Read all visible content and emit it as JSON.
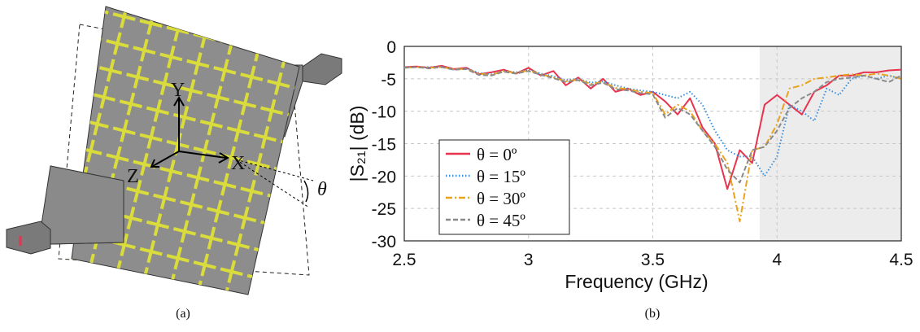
{
  "diagram": {
    "labels": {
      "y": "Y",
      "x": "X",
      "z": "Z",
      "angle": "θ"
    }
  },
  "captions": [
    "(a)",
    "(b)"
  ],
  "chart_data": {
    "type": "line",
    "xlabel": "Frequency (GHz)",
    "ylabel": "|S₂₁| (dB)",
    "x": [
      2.5,
      2.55,
      2.6,
      2.65,
      2.7,
      2.75,
      2.8,
      2.85,
      2.9,
      2.95,
      3.0,
      3.05,
      3.1,
      3.15,
      3.2,
      3.25,
      3.3,
      3.35,
      3.4,
      3.45,
      3.5,
      3.55,
      3.6,
      3.65,
      3.7,
      3.75,
      3.8,
      3.85,
      3.9,
      3.95,
      4.0,
      4.05,
      4.1,
      4.15,
      4.2,
      4.25,
      4.3,
      4.35,
      4.4,
      4.45,
      4.5
    ],
    "series": [
      {
        "name": "θ = 0º",
        "color": "#e8334f",
        "dash": "solid",
        "values": [
          -3.2,
          -3.1,
          -3.3,
          -3.0,
          -3.5,
          -3.3,
          -4.3,
          -4.0,
          -3.6,
          -4.2,
          -3.3,
          -4.5,
          -3.8,
          -6.0,
          -4.8,
          -6.5,
          -5.0,
          -7.0,
          -6.5,
          -7.5,
          -7.0,
          -8.5,
          -10.5,
          -8.0,
          -12.5,
          -15.0,
          -22.0,
          -16.0,
          -18.0,
          -9.0,
          -7.5,
          -9.0,
          -10.5,
          -7.0,
          -6.0,
          -4.5,
          -4.5,
          -4.0,
          -4.0,
          -3.7,
          -3.6
        ]
      },
      {
        "name": "θ = 15º",
        "color": "#3a8fdc",
        "dash": "dotted",
        "values": [
          -3.2,
          -3.2,
          -3.2,
          -3.1,
          -3.6,
          -3.4,
          -4.1,
          -4.3,
          -3.8,
          -4.0,
          -3.6,
          -4.2,
          -4.6,
          -5.2,
          -5.0,
          -5.6,
          -5.4,
          -6.0,
          -6.5,
          -6.8,
          -7.0,
          -7.5,
          -8.0,
          -7.0,
          -9.0,
          -13.0,
          -16.0,
          -17.0,
          -17.0,
          -20.0,
          -17.0,
          -9.0,
          -10.0,
          -11.5,
          -6.5,
          -7.5,
          -5.0,
          -4.5,
          -5.0,
          -4.5,
          -5.0
        ]
      },
      {
        "name": "θ = 30º",
        "color": "#e8a21c",
        "dash": "dashdot",
        "values": [
          -3.3,
          -3.2,
          -3.3,
          -3.2,
          -3.5,
          -3.5,
          -4.2,
          -4.4,
          -3.8,
          -4.1,
          -3.7,
          -4.3,
          -4.8,
          -5.4,
          -5.1,
          -5.8,
          -5.5,
          -6.4,
          -6.6,
          -7.0,
          -7.2,
          -10.5,
          -9.0,
          -10.0,
          -13.0,
          -15.0,
          -18.0,
          -27.0,
          -16.0,
          -15.5,
          -12.0,
          -6.5,
          -6.0,
          -5.0,
          -4.8,
          -4.5,
          -4.3,
          -4.5,
          -4.2,
          -4.5,
          -5.0
        ]
      },
      {
        "name": "θ = 45º",
        "color": "#8a8a8a",
        "dash": "dashed",
        "values": [
          -3.3,
          -3.2,
          -3.4,
          -3.2,
          -3.6,
          -3.5,
          -4.4,
          -4.5,
          -3.9,
          -4.2,
          -3.8,
          -4.4,
          -4.9,
          -5.5,
          -5.2,
          -6.0,
          -5.6,
          -6.6,
          -6.8,
          -7.2,
          -7.4,
          -11.0,
          -9.5,
          -10.5,
          -13.0,
          -15.5,
          -19.0,
          -21.0,
          -16.0,
          -15.5,
          -13.0,
          -9.5,
          -8.0,
          -7.0,
          -5.5,
          -5.0,
          -4.8,
          -4.5,
          -5.0,
          -5.5,
          -4.5
        ]
      }
    ],
    "xlim": [
      2.5,
      4.5
    ],
    "xticks": [
      2.5,
      3,
      3.5,
      4,
      4.5
    ],
    "ylim": [
      -30,
      0
    ],
    "yticks": [
      0,
      -5,
      -10,
      -15,
      -20,
      -25,
      -30
    ],
    "shaded_region": [
      3.93,
      4.5
    ],
    "grid": true,
    "legend": "lower left"
  }
}
